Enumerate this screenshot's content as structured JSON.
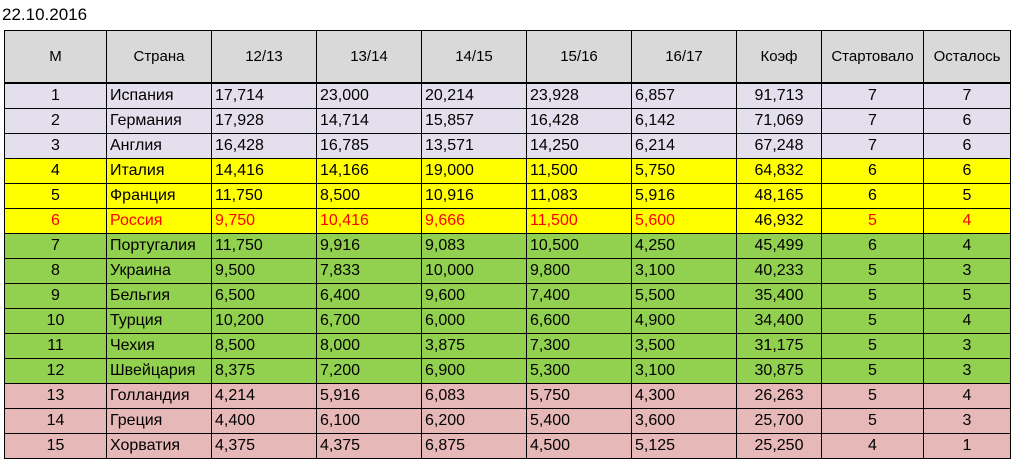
{
  "sheet": {
    "date": "22.10.2016"
  },
  "colors": {
    "header_bg": "#d9d9d9",
    "band_top": "#e4dfec",
    "band_yellow": "#ffff00",
    "band_green": "#92d050",
    "band_red": "#e6b8b7",
    "highlight_text": "#ff0000"
  },
  "table": {
    "headers": [
      "М",
      "Страна",
      "12/13",
      "13/14",
      "14/15",
      "15/16",
      "16/17",
      "Коэф",
      "Стартовало",
      "Осталось"
    ],
    "rows": [
      {
        "band": "top",
        "highlight": false,
        "cells": [
          "1",
          "Испания",
          "17,714",
          "23,000",
          "20,214",
          "23,928",
          "6,857",
          "91,713",
          "7",
          "7"
        ]
      },
      {
        "band": "top",
        "highlight": false,
        "cells": [
          "2",
          "Германия",
          "17,928",
          "14,714",
          "15,857",
          "16,428",
          "6,142",
          "71,069",
          "7",
          "6"
        ]
      },
      {
        "band": "top",
        "highlight": false,
        "cells": [
          "3",
          "Англия",
          "16,428",
          "16,785",
          "13,571",
          "14,250",
          "6,214",
          "67,248",
          "7",
          "6"
        ]
      },
      {
        "band": "yellow",
        "highlight": false,
        "cells": [
          "4",
          "Италия",
          "14,416",
          "14,166",
          "19,000",
          "11,500",
          "5,750",
          "64,832",
          "6",
          "6"
        ]
      },
      {
        "band": "yellow",
        "highlight": false,
        "cells": [
          "5",
          "Франция",
          "11,750",
          "8,500",
          "10,916",
          "11,083",
          "5,916",
          "48,165",
          "6",
          "5"
        ]
      },
      {
        "band": "yellow",
        "highlight": true,
        "cells": [
          "6",
          "Россия",
          "9,750",
          "10,416",
          "9,666",
          "11,500",
          "5,600",
          "46,932",
          "5",
          "4"
        ]
      },
      {
        "band": "green",
        "highlight": false,
        "cells": [
          "7",
          "Португалия",
          "11,750",
          "9,916",
          "9,083",
          "10,500",
          "4,250",
          "45,499",
          "6",
          "4"
        ]
      },
      {
        "band": "green",
        "highlight": false,
        "cells": [
          "8",
          "Украина",
          "9,500",
          "7,833",
          "10,000",
          "9,800",
          "3,100",
          "40,233",
          "5",
          "3"
        ]
      },
      {
        "band": "green",
        "highlight": false,
        "cells": [
          "9",
          "Бельгия",
          "6,500",
          "6,400",
          "9,600",
          "7,400",
          "5,500",
          "35,400",
          "5",
          "5"
        ]
      },
      {
        "band": "green",
        "highlight": false,
        "cells": [
          "10",
          "Турция",
          "10,200",
          "6,700",
          "6,000",
          "6,600",
          "4,900",
          "34,400",
          "5",
          "4"
        ]
      },
      {
        "band": "green",
        "highlight": false,
        "cells": [
          "11",
          "Чехия",
          "8,500",
          "8,000",
          "3,875",
          "7,300",
          "3,500",
          "31,175",
          "5",
          "3"
        ]
      },
      {
        "band": "green",
        "highlight": false,
        "cells": [
          "12",
          "Швейцария",
          "8,375",
          "7,200",
          "6,900",
          "5,300",
          "3,100",
          "30,875",
          "5",
          "3"
        ]
      },
      {
        "band": "red",
        "highlight": false,
        "cells": [
          "13",
          "Голландия",
          "4,214",
          "5,916",
          "6,083",
          "5,750",
          "4,300",
          "26,263",
          "5",
          "4"
        ]
      },
      {
        "band": "red",
        "highlight": false,
        "cells": [
          "14",
          "Греция",
          "4,400",
          "6,100",
          "6,200",
          "5,400",
          "3,600",
          "25,700",
          "5",
          "3"
        ]
      },
      {
        "band": "red",
        "highlight": false,
        "cells": [
          "15",
          "Хорватия",
          "4,375",
          "4,375",
          "6,875",
          "4,500",
          "5,125",
          "25,250",
          "4",
          "1"
        ]
      }
    ]
  }
}
